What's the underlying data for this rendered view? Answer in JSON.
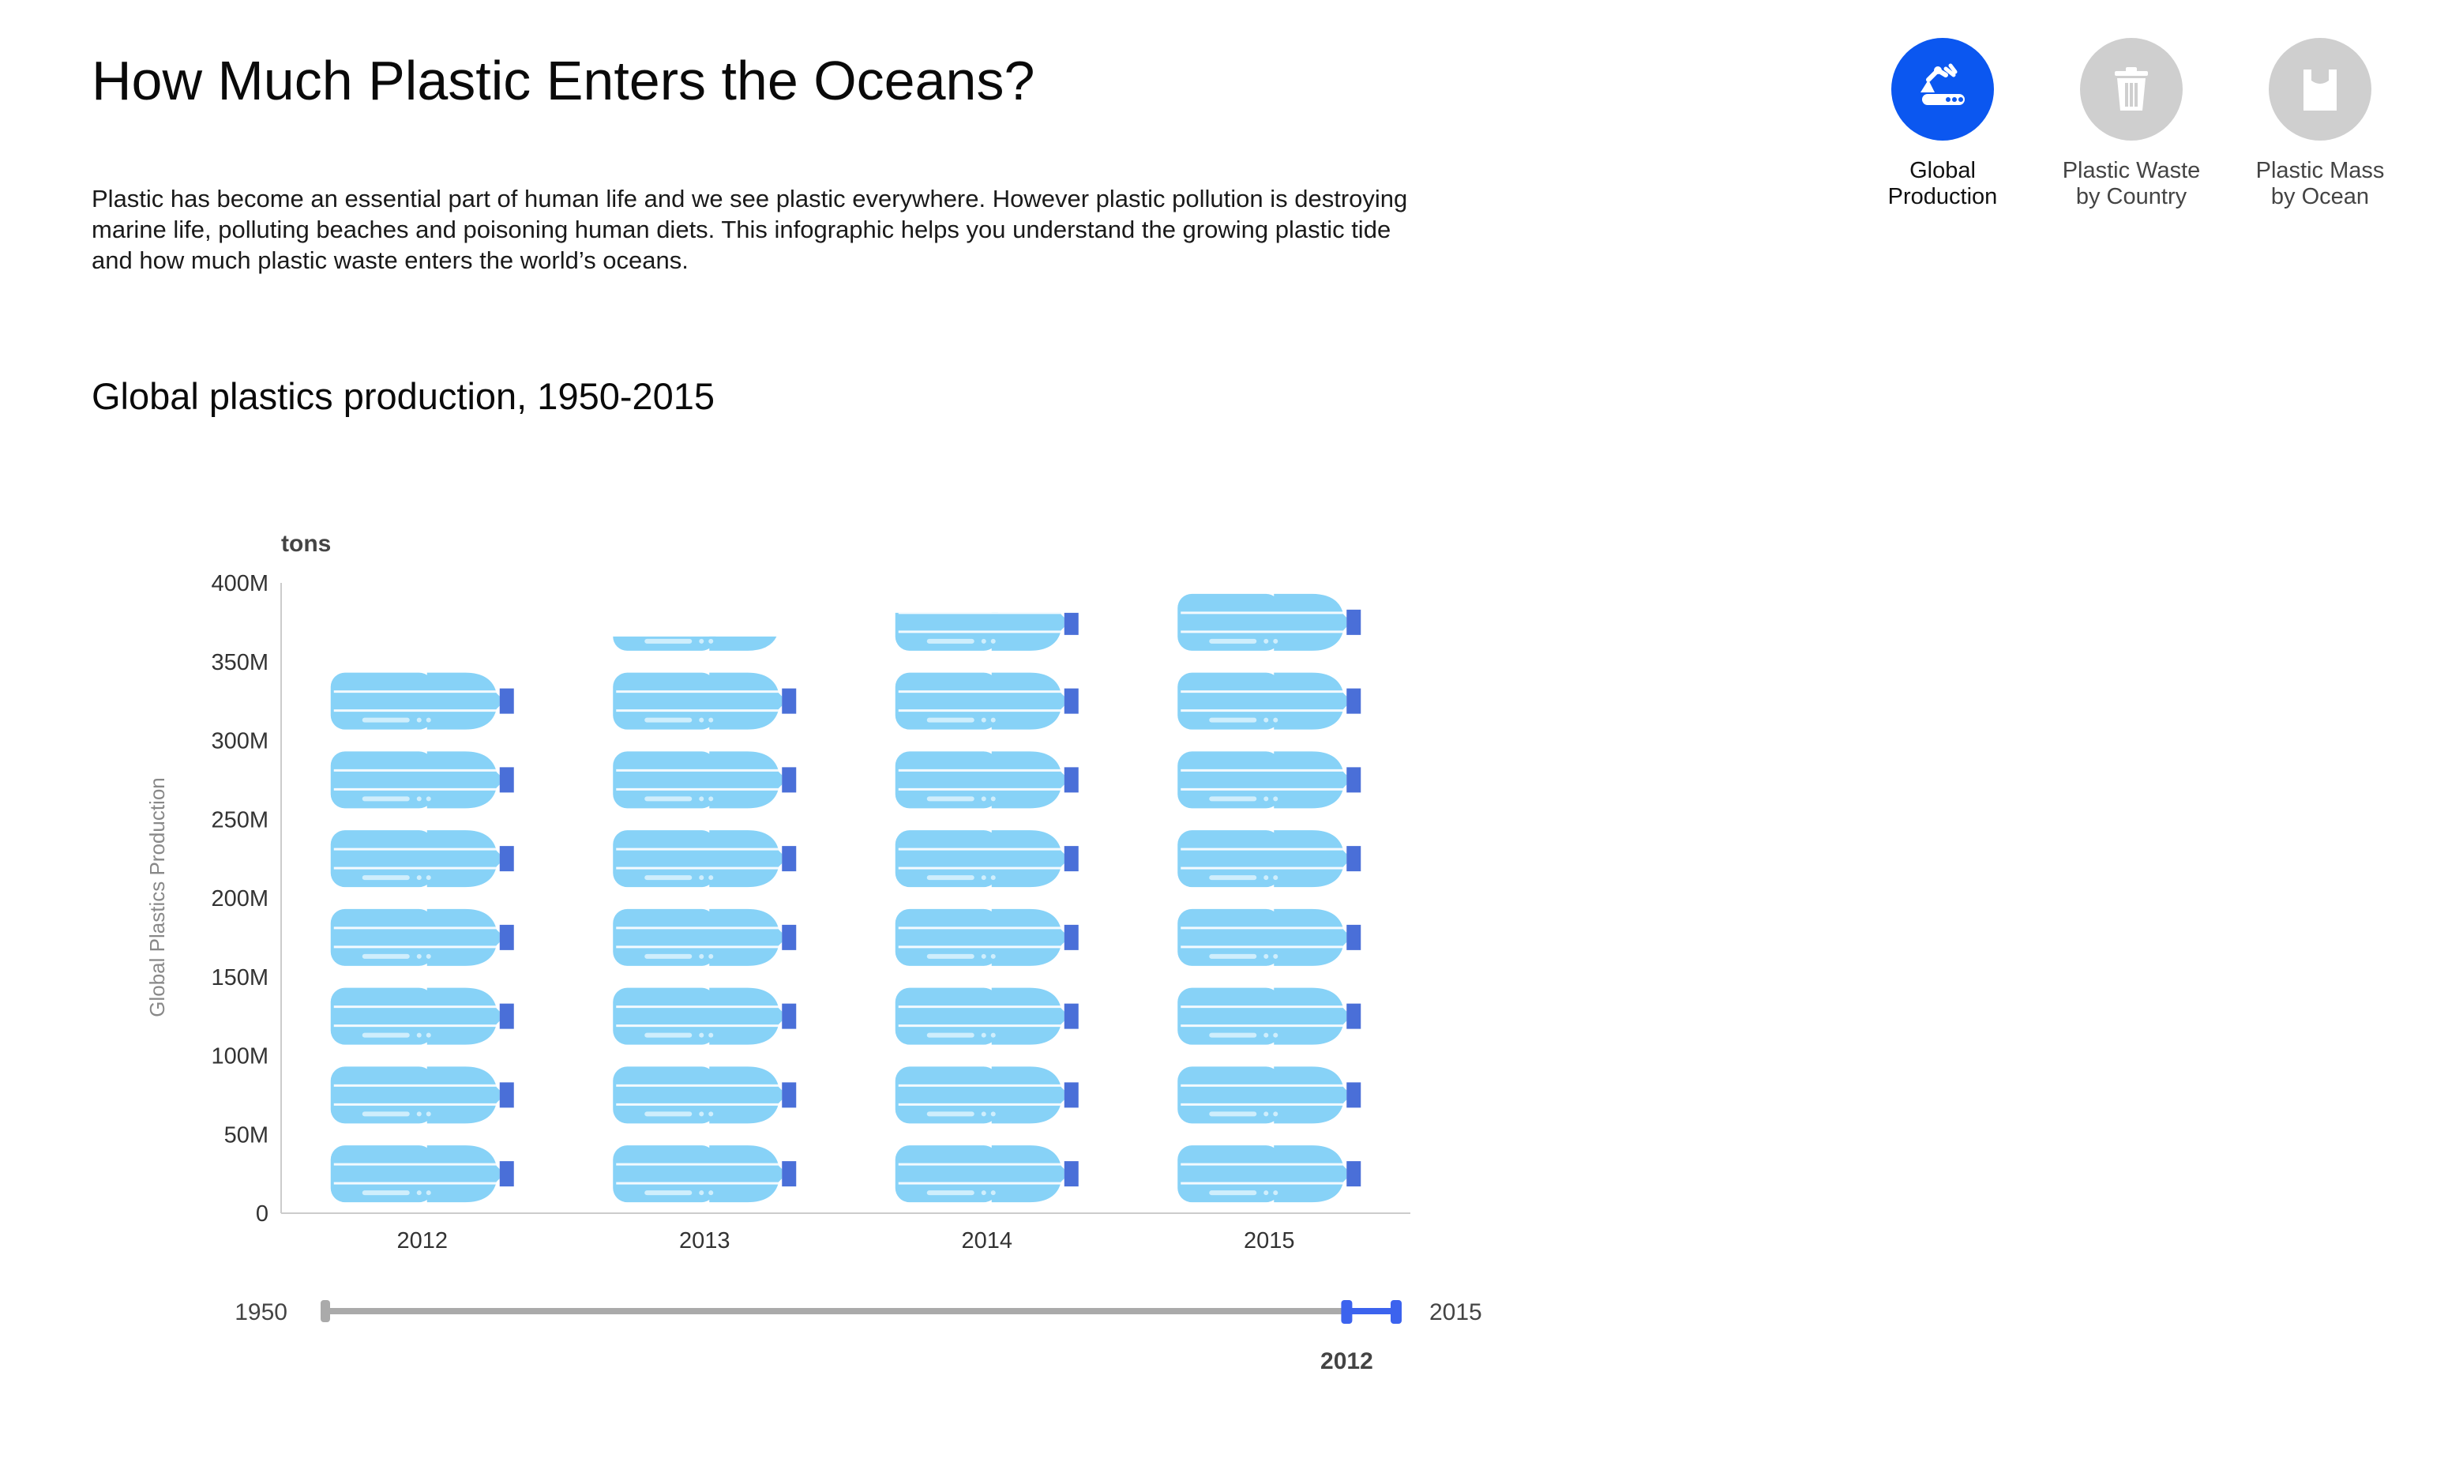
{
  "header": {
    "title": "How Much Plastic Enters the Oceans?",
    "intro": "Plastic has become an essential part of human life and we see plastic everywhere. However plastic pollution is destroying marine life, polluting beaches and poisoning human diets. This infographic helps you understand the growing plastic tide and how much plastic waste enters the world’s oceans."
  },
  "nav": {
    "items": [
      {
        "label_line1": "Global",
        "label_line2": "Production",
        "icon": "factory-robot-arm-icon",
        "active": true
      },
      {
        "label_line1": "Plastic Waste",
        "label_line2": "by Country",
        "icon": "trash-can-icon",
        "active": false
      },
      {
        "label_line1": "Plastic Mass",
        "label_line2": "by Ocean",
        "icon": "plastic-bag-icon",
        "active": false
      }
    ],
    "active_color": "#0b57f0",
    "inactive_color": "#cfcfcf"
  },
  "section": {
    "subtitle": "Global plastics production, 1950-2015"
  },
  "colors": {
    "bottle": "#87d2f7",
    "bottle_cap": "#4a6fd8",
    "bottle_highlight": "#cfeefc",
    "axis": "#cccccc",
    "slider_track": "#aaaaaa",
    "slider_active": "#3c63ee"
  },
  "chart_data": {
    "type": "bar",
    "pictograph": "plastic-bottle",
    "units_per_icon": 50000000,
    "categories": [
      "2012",
      "2013",
      "2014",
      "2015"
    ],
    "values": [
      350000000,
      366000000,
      381000000,
      397000000
    ],
    "unit_label": "tons",
    "ylabel": "Global Plastics Production",
    "ylim": [
      0,
      400000000
    ],
    "ytick_values": [
      0,
      50000000,
      100000000,
      150000000,
      200000000,
      250000000,
      300000000,
      350000000,
      400000000
    ],
    "ytick_labels": [
      "0",
      "50M",
      "100M",
      "150M",
      "200M",
      "250M",
      "300M",
      "350M",
      "400M"
    ],
    "grid": false,
    "legend": "none"
  },
  "range_slider": {
    "min_label": "1950",
    "max_label": "2015",
    "min": 1950,
    "max": 2015,
    "start": 2012,
    "end": 2015,
    "start_label": "2012"
  }
}
